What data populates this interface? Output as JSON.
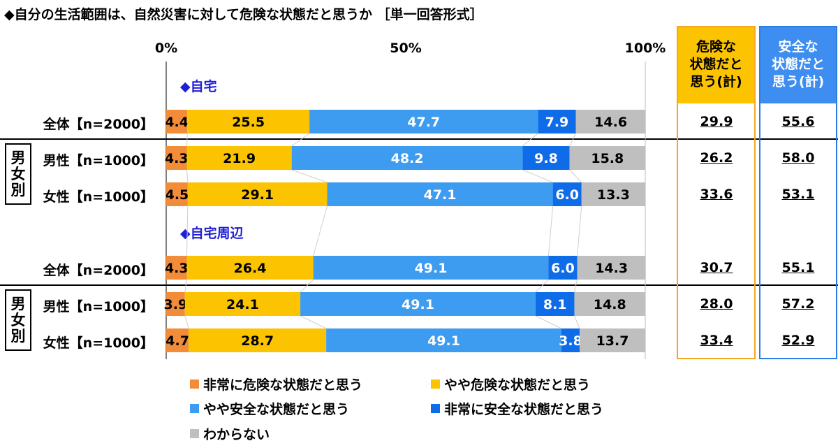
{
  "title": "◆自分の生活範囲は、自然災害に対して危険な状態だと思うか ［単一回答形式］",
  "chart_data": {
    "type": "bar",
    "orientation": "horizontal",
    "stacked": true,
    "x_ticks": [
      "0%",
      "50%",
      "100%"
    ],
    "xlim": [
      0,
      100
    ],
    "legend_position": "bottom",
    "sections": [
      {
        "label": "◆自宅"
      },
      {
        "label": "◆自宅周辺"
      }
    ],
    "groups": [
      {
        "label": [
          "男",
          "女",
          "別"
        ]
      },
      {
        "label": [
          "男",
          "女",
          "別"
        ]
      }
    ],
    "series": [
      {
        "name": "非常に危険な状態だと思う",
        "color": "#f28c38"
      },
      {
        "name": "やや危険な状態だと思う",
        "color": "#fbc300"
      },
      {
        "name": "やや安全な状態だと思う",
        "color": "#3d9cf0"
      },
      {
        "name": "非常に安全な状態だと思う",
        "color": "#0f6ce8"
      },
      {
        "name": "わからない",
        "color": "#bfbfbf"
      }
    ],
    "rows": [
      {
        "label": "全体【n=2000】",
        "values": [
          4.4,
          25.5,
          47.7,
          7.9,
          14.6
        ],
        "danger_total": "29.9",
        "safe_total": "55.6"
      },
      {
        "label": "男性【n=1000】",
        "values": [
          4.3,
          21.9,
          48.2,
          9.8,
          15.8
        ],
        "danger_total": "26.2",
        "safe_total": "58.0"
      },
      {
        "label": "女性【n=1000】",
        "values": [
          4.5,
          29.1,
          47.1,
          6.0,
          13.3
        ],
        "danger_total": "33.6",
        "safe_total": "53.1"
      },
      {
        "label": "全体【n=2000】",
        "values": [
          4.3,
          26.4,
          49.1,
          6.0,
          14.3
        ],
        "danger_total": "30.7",
        "safe_total": "55.1"
      },
      {
        "label": "男性【n=1000】",
        "values": [
          3.9,
          24.1,
          49.1,
          8.1,
          14.8
        ],
        "danger_total": "28.0",
        "safe_total": "57.2"
      },
      {
        "label": "女性【n=1000】",
        "values": [
          4.7,
          28.7,
          49.1,
          3.8,
          13.7
        ],
        "danger_total": "33.4",
        "safe_total": "52.9"
      }
    ],
    "summary_columns": [
      {
        "header": [
          "危険な",
          "状態だと",
          "思う(計)"
        ],
        "border_color": "#f5a623",
        "header_bg": "#fbc300",
        "header_color": "#000000"
      },
      {
        "header": [
          "安全な",
          "状態だと",
          "思う(計)"
        ],
        "border_color": "#2a7de1",
        "header_bg": "#3d8ef0",
        "header_color": "#ffffff"
      }
    ]
  }
}
